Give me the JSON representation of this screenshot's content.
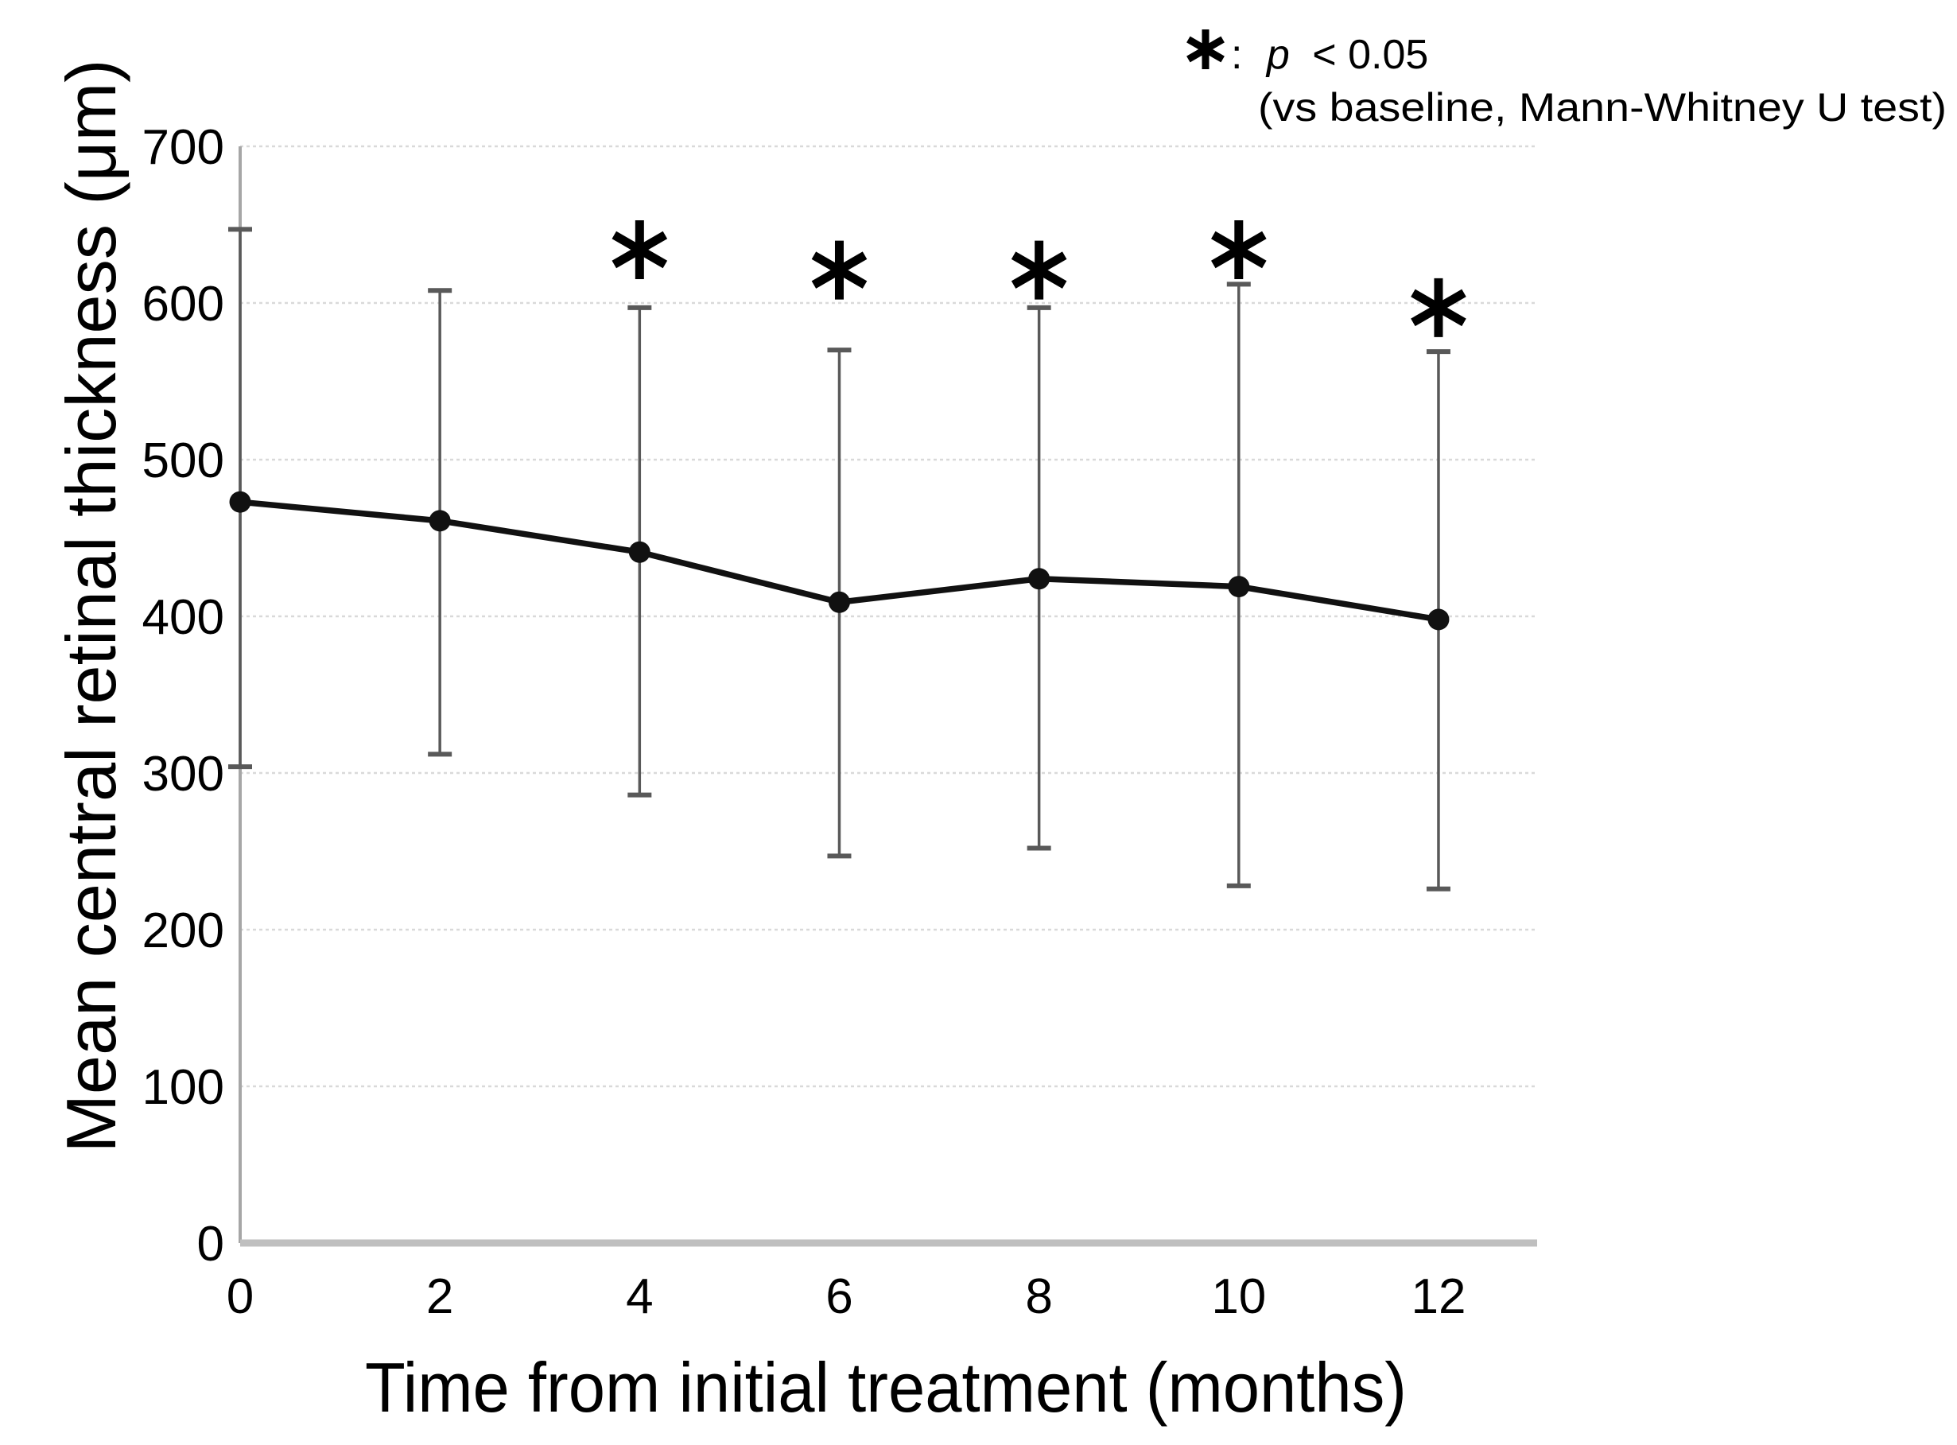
{
  "annotation": {
    "symbol": "*",
    "colon": ":",
    "p_var": "p",
    "condition": "< 0.05",
    "line2": "(vs baseline,  Mann-Whitney U test)"
  },
  "chart_data": {
    "type": "line",
    "title": "",
    "xlabel": "Time from initial treatment (months)",
    "ylabel": "Mean central retinal thickness (μm)",
    "x": [
      0,
      2,
      4,
      6,
      8,
      10,
      12
    ],
    "series": [
      {
        "name": "Mean central retinal thickness",
        "values": [
          473,
          461,
          441,
          409,
          424,
          419,
          398
        ],
        "error_upper": [
          647,
          608,
          597,
          570,
          597,
          612,
          569
        ],
        "error_lower": [
          304,
          312,
          286,
          247,
          252,
          228,
          226
        ]
      }
    ],
    "significance": {
      "symbol": "*",
      "note": "p < 0.05 vs baseline, Mann-Whitney U test",
      "x": [
        4,
        6,
        8,
        10,
        12
      ],
      "y": [
        634,
        621,
        621,
        634,
        597
      ]
    },
    "xticks": [
      0,
      2,
      4,
      6,
      8,
      10,
      12
    ],
    "yticks": [
      0,
      100,
      200,
      300,
      400,
      500,
      600,
      700
    ],
    "xlim": [
      0,
      13
    ],
    "ylim": [
      0,
      700
    ],
    "grid": true,
    "legend": "none",
    "colors": {
      "line": "#111111",
      "marker": "#111111",
      "error_bar": "#595959",
      "gridline": "#d9d9d9",
      "axis_y": "#a6a6a6",
      "axis_x": "#bfbfbf",
      "text": "#000000",
      "background": "#ffffff"
    }
  }
}
